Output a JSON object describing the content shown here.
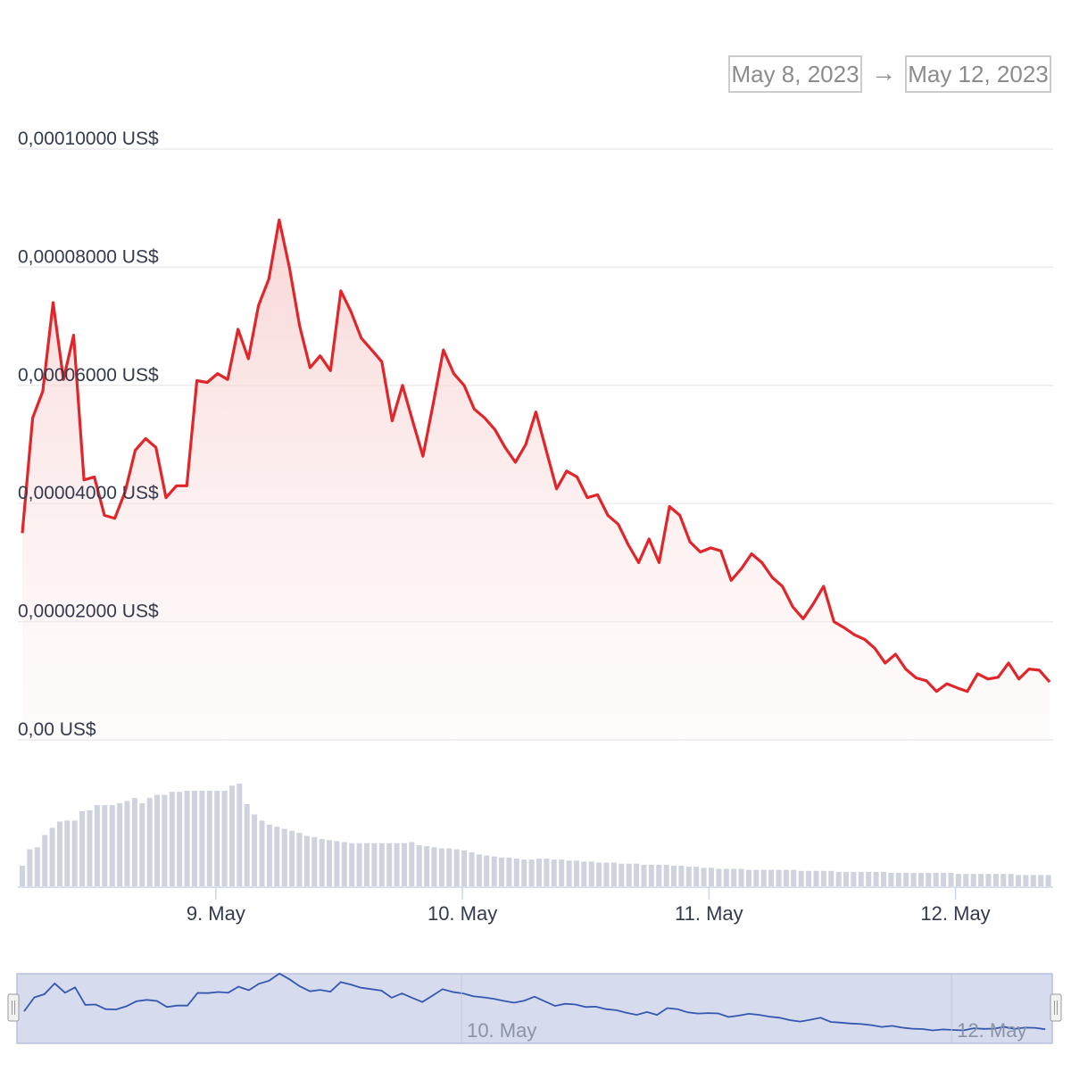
{
  "range_selector": {
    "from": "May 8, 2023",
    "arrow": "→",
    "to": "May 12, 2023"
  },
  "colors": {
    "price_line": "#e0262a",
    "price_fill": "#f9d9d9",
    "volume_bar": "#cfd3de",
    "grid": "#ececec",
    "navigator_fill": "#d6dcee",
    "navigator_line": "#3457b0",
    "axis_text": "#333a4d"
  },
  "chart_data": {
    "type": "area",
    "y_axis": {
      "ticks": [
        "0,00 US$",
        "0,00002000 US$",
        "0,00004000 US$",
        "0,00006000 US$",
        "0,00008000 US$",
        "0,00010000 US$"
      ],
      "tick_values": [
        0,
        2e-05,
        4e-05,
        6e-05,
        8e-05,
        0.0001
      ],
      "range": [
        0,
        0.0001
      ],
      "grid": true
    },
    "x_axis": {
      "ticks": [
        "9. May",
        "10. May",
        "11. May",
        "12. May"
      ],
      "tick_positions_days": [
        0.785,
        1.785,
        2.785,
        3.785
      ],
      "range_days": [
        0,
        4.1
      ]
    },
    "price_series": {
      "x": [
        0,
        0.042,
        0.083,
        0.125,
        0.167,
        0.208,
        0.25,
        0.292,
        0.333,
        0.375,
        0.417,
        0.458,
        0.5,
        0.542,
        0.583,
        0.625,
        0.667,
        0.708,
        0.75,
        0.792,
        0.833,
        0.875,
        0.917,
        0.958,
        1.0,
        1.042,
        1.083,
        1.125,
        1.167,
        1.208,
        1.25,
        1.292,
        1.333,
        1.375,
        1.417,
        1.458,
        1.5,
        1.542,
        1.583,
        1.625,
        1.667,
        1.708,
        1.75,
        1.792,
        1.833,
        1.875,
        1.917,
        1.958,
        2.0,
        2.042,
        2.083,
        2.125,
        2.167,
        2.208,
        2.25,
        2.292,
        2.333,
        2.375,
        2.417,
        2.458,
        2.5,
        2.542,
        2.583,
        2.625,
        2.667,
        2.708,
        2.75,
        2.792,
        2.833,
        2.875,
        2.917,
        2.958,
        3.0,
        3.042,
        3.083,
        3.125,
        3.167,
        3.208,
        3.25,
        3.292,
        3.333,
        3.375,
        3.417,
        3.458,
        3.5,
        3.542,
        3.583,
        3.625,
        3.667,
        3.708,
        3.75,
        3.792,
        3.833,
        3.875,
        3.917,
        3.958,
        4.0,
        4.042,
        4.083,
        4.125,
        4.167
      ],
      "values": [
        3.5e-05,
        5.45e-05,
        5.9e-05,
        7.4e-05,
        6.1e-05,
        6.85e-05,
        4.4e-05,
        4.45e-05,
        3.8e-05,
        3.75e-05,
        4.2e-05,
        4.9e-05,
        5.1e-05,
        4.95e-05,
        4.1e-05,
        4.3e-05,
        4.3e-05,
        6.08e-05,
        6.05e-05,
        6.2e-05,
        6.1e-05,
        6.95e-05,
        6.45e-05,
        7.35e-05,
        7.8e-05,
        8.8e-05,
        8e-05,
        7e-05,
        6.3e-05,
        6.5e-05,
        6.25e-05,
        7.6e-05,
        7.25e-05,
        6.8e-05,
        6.6e-05,
        6.4e-05,
        5.4e-05,
        6e-05,
        5.4e-05,
        4.8e-05,
        5.7e-05,
        6.6e-05,
        6.2e-05,
        6e-05,
        5.6e-05,
        5.45e-05,
        5.25e-05,
        4.95e-05,
        4.7e-05,
        5e-05,
        5.55e-05,
        4.9e-05,
        4.25e-05,
        4.55e-05,
        4.45e-05,
        4.1e-05,
        4.15e-05,
        3.8e-05,
        3.65e-05,
        3.3e-05,
        3e-05,
        3.4e-05,
        3e-05,
        3.95e-05,
        3.8e-05,
        3.35e-05,
        3.18e-05,
        3.25e-05,
        3.2e-05,
        2.7e-05,
        2.9e-05,
        3.15e-05,
        3e-05,
        2.75e-05,
        2.6e-05,
        2.25e-05,
        2.05e-05,
        2.3e-05,
        2.6e-05,
        2e-05,
        1.9e-05,
        1.78e-05,
        1.7e-05,
        1.55e-05,
        1.3e-05,
        1.45e-05,
        1.2e-05,
        1.05e-05,
        1e-05,
        8.2e-06,
        9.5e-06,
        8.8e-06,
        8.2e-06,
        1.12e-05,
        1.03e-05,
        1.06e-05,
        1.3e-05,
        1.03e-05,
        1.2e-05,
        1.18e-05,
        9.8e-06
      ]
    },
    "volume_series": {
      "values": [
        20,
        36,
        38,
        50,
        57,
        63,
        64,
        64,
        73,
        74,
        79,
        79,
        79,
        81,
        83,
        86,
        81,
        86,
        89,
        89,
        92,
        92,
        93,
        93,
        93,
        93,
        93,
        93,
        98,
        100,
        80,
        70,
        64,
        60,
        58,
        56,
        54,
        52,
        49,
        48,
        46,
        45,
        44,
        43,
        42,
        42,
        42,
        42,
        42,
        42,
        42,
        42,
        43,
        40,
        39,
        38,
        37,
        37,
        36,
        35,
        33,
        31,
        30,
        29,
        28,
        28,
        27,
        26,
        26,
        27,
        27,
        26,
        26,
        25,
        25,
        24,
        24,
        23,
        23,
        23,
        22,
        22,
        22,
        21,
        21,
        21,
        21,
        20,
        20,
        19,
        19,
        18,
        18,
        17,
        17,
        17,
        17,
        16,
        16,
        16,
        16,
        16,
        16,
        16,
        15,
        15,
        15,
        15,
        15,
        14,
        14,
        14,
        14,
        14,
        14,
        14,
        13,
        13,
        13,
        13,
        13,
        13,
        13,
        13,
        13,
        12,
        12,
        12,
        12,
        12,
        12,
        12,
        12,
        11,
        11,
        11,
        11,
        11
      ]
    },
    "navigator": {
      "labels": [
        "10. May",
        "12. May"
      ],
      "label_positions_days": [
        1.785,
        3.785
      ],
      "window_days": [
        0,
        4.167
      ]
    }
  }
}
